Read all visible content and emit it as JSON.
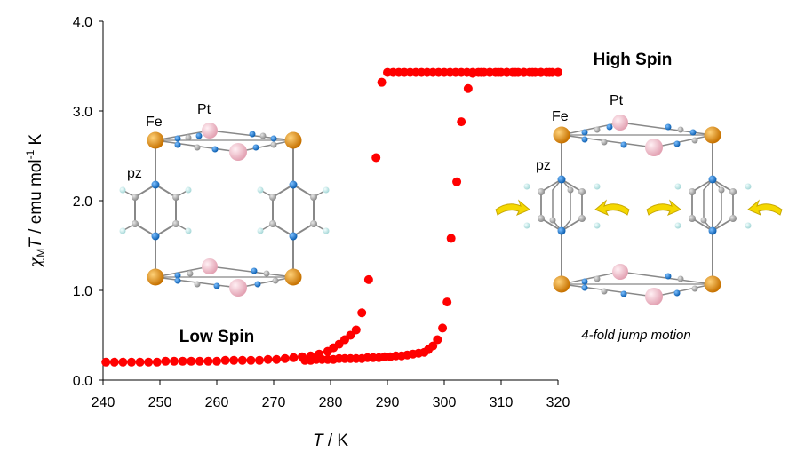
{
  "chart_data": {
    "type": "scatter",
    "xlabel_italic": "T",
    "xlabel_rest": " / K",
    "ylabel_chi": "χ",
    "ylabel_sub": "M",
    "ylabel_T": "T",
    "ylabel_rest": " / emu mol",
    "ylabel_sup": "-1",
    "ylabel_end": " K",
    "xlim": [
      240,
      320
    ],
    "ylim": [
      0,
      4
    ],
    "xticks": [
      "240",
      "250",
      "260",
      "270",
      "280",
      "290",
      "300",
      "310",
      "320"
    ],
    "yticks": [
      "0.0",
      "1.0",
      "2.0",
      "3.0",
      "4.0"
    ],
    "grid": false,
    "marker_color": "#ff0000",
    "series": [
      {
        "x": [
          240.5,
          242,
          243.5,
          245,
          246.5,
          248,
          249.5,
          251,
          252.5,
          254,
          255.5,
          257,
          258.5,
          260,
          261.5,
          263,
          264.5,
          266,
          267.5,
          269,
          270.5,
          272,
          273.5,
          275,
          276.5,
          278,
          279.5,
          280.5,
          281.5,
          282.5,
          283.5,
          284.5,
          285.5,
          286.7,
          288,
          289,
          290,
          291,
          292,
          293,
          294,
          295,
          296,
          297,
          298,
          299,
          300,
          301,
          302,
          303,
          304,
          305,
          306,
          307,
          308,
          309,
          310,
          311,
          312,
          313,
          314,
          315,
          316,
          317,
          318,
          319,
          320
        ],
        "y": [
          0.2,
          0.2,
          0.2,
          0.2,
          0.2,
          0.2,
          0.2,
          0.21,
          0.21,
          0.21,
          0.21,
          0.21,
          0.21,
          0.21,
          0.22,
          0.22,
          0.22,
          0.22,
          0.22,
          0.23,
          0.23,
          0.24,
          0.25,
          0.26,
          0.27,
          0.29,
          0.32,
          0.36,
          0.4,
          0.45,
          0.5,
          0.56,
          0.75,
          1.12,
          2.48,
          3.32,
          3.43,
          3.43,
          3.43,
          3.43,
          3.43,
          3.43,
          3.43,
          3.43,
          3.43,
          3.43,
          3.43,
          3.43,
          3.43,
          3.43,
          3.43,
          3.43,
          3.43,
          3.43,
          3.43,
          3.43,
          3.43,
          3.43,
          3.43,
          3.43,
          3.43,
          3.43,
          3.43,
          3.43,
          3.43,
          3.43,
          3.43
        ]
      },
      {
        "x": [
          320,
          318.5,
          317,
          315.5,
          314,
          312.5,
          311,
          309.5,
          308,
          306.5,
          305,
          304.2,
          303,
          302.2,
          301.2,
          300.5,
          299.7,
          298.8,
          298,
          297.2,
          296.5,
          295.5,
          294.5,
          293.5,
          292.5,
          291.5,
          290.5,
          289.5,
          288.5,
          287.5,
          286.5,
          285.5,
          284.5,
          283.5,
          282.5,
          281.5,
          280.5,
          279.5,
          278.5,
          277.5,
          276.5,
          275.5
        ],
        "y": [
          3.43,
          3.43,
          3.43,
          3.43,
          3.43,
          3.43,
          3.43,
          3.43,
          3.43,
          3.43,
          3.42,
          3.25,
          2.88,
          2.21,
          1.58,
          0.87,
          0.58,
          0.45,
          0.38,
          0.34,
          0.31,
          0.3,
          0.29,
          0.28,
          0.27,
          0.27,
          0.26,
          0.26,
          0.25,
          0.25,
          0.25,
          0.24,
          0.24,
          0.24,
          0.24,
          0.24,
          0.23,
          0.23,
          0.23,
          0.23,
          0.22,
          0.22
        ]
      }
    ]
  },
  "annotations": {
    "low_spin": "Low Spin",
    "high_spin": "High Spin",
    "jump_motion": "4-fold jump motion"
  },
  "left_structure": {
    "fe": "Fe",
    "pt": "Pt",
    "pz": "pz"
  },
  "right_structure": {
    "fe": "Fe",
    "pt": "Pt",
    "pz": "pz"
  },
  "colors": {
    "fe_atom": "#e8900c",
    "pt_atom": "#f2b8c6",
    "n_atom": "#1e7fd8",
    "c_atom": "#a8a8a8",
    "h_atom": "#c8ecec",
    "bond": "#888888",
    "arrow": "#f5d800"
  }
}
